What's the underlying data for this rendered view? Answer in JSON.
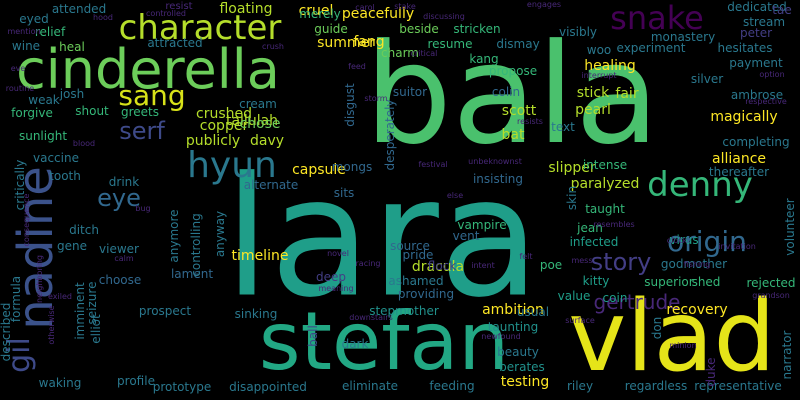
{
  "words": [
    {
      "text": "lara",
      "color": "#1f9e89"
    },
    {
      "text": "bala",
      "color": "#4ac16d"
    },
    {
      "text": "stefan",
      "color": "#22a884"
    },
    {
      "text": "vlad",
      "color": "#e5e419"
    },
    {
      "text": "cinderella",
      "color": "#6ccd5a"
    },
    {
      "text": "nadine",
      "color": "#3b528b"
    },
    {
      "text": "denny",
      "color": "#35b779"
    },
    {
      "text": "character",
      "color": "#b5de2b"
    },
    {
      "text": "sang",
      "color": "#d8e219"
    },
    {
      "text": "snake",
      "color": "#440154"
    },
    {
      "text": "hyun",
      "color": "#2a788e"
    },
    {
      "text": "origin",
      "color": "#31688e"
    },
    {
      "text": "gil",
      "color": "#3e4a89"
    },
    {
      "text": "eye",
      "color": "#31688e"
    },
    {
      "text": "serf",
      "color": "#3e4a89"
    },
    {
      "text": "story",
      "color": "#433e85"
    },
    {
      "text": "gertrude",
      "color": "#482878"
    },
    {
      "text": "tallulah",
      "color": "#b5de2b"
    },
    {
      "text": "dracula",
      "color": "#b5de2b"
    },
    {
      "text": "ambition",
      "color": "#fde725"
    },
    {
      "text": "capsule",
      "color": "#fde725"
    },
    {
      "text": "timeline",
      "color": "#fde725"
    },
    {
      "text": "healing",
      "color": "#fde725"
    },
    {
      "text": "alliance",
      "color": "#fde725"
    },
    {
      "text": "magically",
      "color": "#fde725"
    },
    {
      "text": "testing",
      "color": "#fde725"
    },
    {
      "text": "peacefully",
      "color": "#fde725"
    },
    {
      "text": "fang",
      "color": "#fde725"
    },
    {
      "text": "cruel",
      "color": "#fde725"
    },
    {
      "text": "summer",
      "color": "#fde725"
    },
    {
      "text": "floating",
      "color": "#b5de2b"
    },
    {
      "text": "recovery",
      "color": "#fde725"
    },
    {
      "text": "crushed",
      "color": "#b5de2b"
    },
    {
      "text": "stick",
      "color": "#b5de2b"
    },
    {
      "text": "fair",
      "color": "#b5de2b"
    },
    {
      "text": "scott",
      "color": "#b5de2b"
    },
    {
      "text": "pearl",
      "color": "#b5de2b"
    },
    {
      "text": "bat",
      "color": "#b5de2b"
    },
    {
      "text": "slipper",
      "color": "#b5de2b"
    },
    {
      "text": "paralyzed",
      "color": "#b5de2b"
    },
    {
      "text": "copper",
      "color": "#b5de2b"
    },
    {
      "text": "publicly",
      "color": "#b5de2b"
    },
    {
      "text": "davy",
      "color": "#b5de2b"
    },
    {
      "text": "chose",
      "color": "#6ccd5a"
    },
    {
      "text": "merely",
      "color": "#35b779"
    },
    {
      "text": "guide",
      "color": "#6ccd5a"
    },
    {
      "text": "beside",
      "color": "#6ccd5a"
    },
    {
      "text": "charm",
      "color": "#6ccd5a"
    },
    {
      "text": "heal",
      "color": "#6ccd5a"
    },
    {
      "text": "relief",
      "color": "#35b779"
    },
    {
      "text": "greets",
      "color": "#35b779"
    },
    {
      "text": "sunlight",
      "color": "#35b779"
    },
    {
      "text": "shout",
      "color": "#35b779"
    },
    {
      "text": "forgive",
      "color": "#35b779"
    },
    {
      "text": "stricken",
      "color": "#35b779"
    },
    {
      "text": "resume",
      "color": "#35b779"
    },
    {
      "text": "kang",
      "color": "#35b779"
    },
    {
      "text": "propose",
      "color": "#35b779"
    },
    {
      "text": "intense",
      "color": "#35b779"
    },
    {
      "text": "jean",
      "color": "#35b779"
    },
    {
      "text": "taught",
      "color": "#35b779"
    },
    {
      "text": "vampire",
      "color": "#35b779"
    },
    {
      "text": "pride",
      "color": "#31688e"
    },
    {
      "text": "kitty",
      "color": "#1f9e89"
    },
    {
      "text": "poe",
      "color": "#35b779"
    },
    {
      "text": "superior",
      "color": "#35b779"
    },
    {
      "text": "shed",
      "color": "#35b779"
    },
    {
      "text": "rejected",
      "color": "#35b779"
    },
    {
      "text": "coin",
      "color": "#1f9e89"
    },
    {
      "text": "value",
      "color": "#1f9e89"
    },
    {
      "text": "providing",
      "color": "#31688e"
    },
    {
      "text": "ashamed",
      "color": "#2a788e"
    },
    {
      "text": "deep",
      "color": "#433e85"
    },
    {
      "text": "flock",
      "color": "#433e85"
    },
    {
      "text": "infected",
      "color": "#1f9e89"
    },
    {
      "text": "virus",
      "color": "#1f9e89"
    },
    {
      "text": "source",
      "color": "#31688e"
    },
    {
      "text": "vent",
      "color": "#31688e"
    },
    {
      "text": "stepmother",
      "color": "#21918c"
    },
    {
      "text": "taunting",
      "color": "#21918c"
    },
    {
      "text": "berates",
      "color": "#21918c"
    },
    {
      "text": "beauty",
      "color": "#2a788e"
    },
    {
      "text": "usual",
      "color": "#2a788e"
    },
    {
      "text": "dark",
      "color": "#2a788e"
    },
    {
      "text": "sinking",
      "color": "#2a788e"
    },
    {
      "text": "prospect",
      "color": "#2a788e"
    },
    {
      "text": "prototype",
      "color": "#2a788e"
    },
    {
      "text": "disappointed",
      "color": "#2a788e"
    },
    {
      "text": "eliminate",
      "color": "#2a788e"
    },
    {
      "text": "feeding",
      "color": "#2a788e"
    },
    {
      "text": "riley",
      "color": "#2a788e"
    },
    {
      "text": "regardless",
      "color": "#2a788e"
    },
    {
      "text": "representative",
      "color": "#2a788e"
    },
    {
      "text": "waking",
      "color": "#2a788e"
    },
    {
      "text": "profile",
      "color": "#2a788e"
    },
    {
      "text": "described",
      "color": "#2a788e"
    },
    {
      "text": "cream",
      "color": "#2a788e"
    },
    {
      "text": "vaccine",
      "color": "#2a788e"
    },
    {
      "text": "tooth",
      "color": "#2a788e"
    },
    {
      "text": "drink",
      "color": "#2a788e"
    },
    {
      "text": "gene",
      "color": "#2a788e"
    },
    {
      "text": "ditch",
      "color": "#2a788e"
    },
    {
      "text": "viewer",
      "color": "#2a788e"
    },
    {
      "text": "choose",
      "color": "#31688e"
    },
    {
      "text": "lament",
      "color": "#31688e"
    },
    {
      "text": "alternate",
      "color": "#31688e"
    },
    {
      "text": "sits",
      "color": "#31688e"
    },
    {
      "text": "anymore",
      "color": "#2a788e"
    },
    {
      "text": "anyway",
      "color": "#2a788e"
    },
    {
      "text": "controlling",
      "color": "#2a788e"
    },
    {
      "text": "insisting",
      "color": "#31688e"
    },
    {
      "text": "desperately",
      "color": "#31688e"
    },
    {
      "text": "mongs",
      "color": "#31688e"
    },
    {
      "text": "suitor",
      "color": "#31688e"
    },
    {
      "text": "disgust",
      "color": "#31688e"
    },
    {
      "text": "colin",
      "color": "#31688e"
    },
    {
      "text": "text",
      "color": "#2a788e"
    },
    {
      "text": "visibly",
      "color": "#2a788e"
    },
    {
      "text": "woo",
      "color": "#2a788e"
    },
    {
      "text": "dismay",
      "color": "#2a788e"
    },
    {
      "text": "experiment",
      "color": "#2a788e"
    },
    {
      "text": "monastery",
      "color": "#2a788e"
    },
    {
      "text": "hesitates",
      "color": "#2a788e"
    },
    {
      "text": "payment",
      "color": "#2a788e"
    },
    {
      "text": "ambrose",
      "color": "#2a788e"
    },
    {
      "text": "stream",
      "color": "#2a788e"
    },
    {
      "text": "dedicated",
      "color": "#2a788e"
    },
    {
      "text": "completing",
      "color": "#2a788e"
    },
    {
      "text": "thereafter",
      "color": "#2a788e"
    },
    {
      "text": "volunteer",
      "color": "#2a788e"
    },
    {
      "text": "narrator",
      "color": "#2a788e"
    },
    {
      "text": "godmother",
      "color": "#2a788e"
    },
    {
      "text": "formula",
      "color": "#2a788e"
    },
    {
      "text": "critically",
      "color": "#2a788e"
    },
    {
      "text": "imminent",
      "color": "#2a788e"
    },
    {
      "text": "seizure",
      "color": "#2a788e"
    },
    {
      "text": "elliot",
      "color": "#2a788e"
    },
    {
      "text": "eyed",
      "color": "#2a788e"
    },
    {
      "text": "wine",
      "color": "#2a788e"
    },
    {
      "text": "josh",
      "color": "#2a788e"
    },
    {
      "text": "weak",
      "color": "#2a788e"
    },
    {
      "text": "attended",
      "color": "#2a788e"
    },
    {
      "text": "attracted",
      "color": "#2a788e"
    },
    {
      "text": "silver",
      "color": "#2a788e"
    },
    {
      "text": "don",
      "color": "#2a788e"
    },
    {
      "text": "skin",
      "color": "#2a788e"
    },
    {
      "text": "ball",
      "color": "#3e4a89"
    },
    {
      "text": "tae",
      "color": "#433e85"
    },
    {
      "text": "peter",
      "color": "#433e85"
    },
    {
      "text": "duke",
      "color": "#482878"
    },
    {
      "text": "resist",
      "color": "#482878"
    },
    {
      "text": "controlled",
      "color": "#482878"
    },
    {
      "text": "hood",
      "color": "#482878"
    },
    {
      "text": "stake",
      "color": "#482878"
    },
    {
      "text": "engages",
      "color": "#482878"
    },
    {
      "text": "carol",
      "color": "#482878"
    },
    {
      "text": "discussing",
      "color": "#482878"
    },
    {
      "text": "crush",
      "color": "#482878"
    },
    {
      "text": "critical",
      "color": "#482878"
    },
    {
      "text": "mention",
      "color": "#482878"
    },
    {
      "text": "eve",
      "color": "#482878"
    },
    {
      "text": "routine",
      "color": "#482878"
    },
    {
      "text": "feed",
      "color": "#482878"
    },
    {
      "text": "interrupt",
      "color": "#482878"
    },
    {
      "text": "option",
      "color": "#482878"
    },
    {
      "text": "respective",
      "color": "#482878"
    },
    {
      "text": "storm",
      "color": "#482878"
    },
    {
      "text": "resists",
      "color": "#482878"
    },
    {
      "text": "blood",
      "color": "#482878"
    },
    {
      "text": "consequence",
      "color": "#482878"
    },
    {
      "text": "festival",
      "color": "#482878"
    },
    {
      "text": "unbeknownst",
      "color": "#482878"
    },
    {
      "text": "else",
      "color": "#482878"
    },
    {
      "text": "bug",
      "color": "#482878"
    },
    {
      "text": "clock",
      "color": "#482878"
    },
    {
      "text": "invitation",
      "color": "#482878"
    },
    {
      "text": "resembles",
      "color": "#482878"
    },
    {
      "text": "calm",
      "color": "#482878"
    },
    {
      "text": "neighboring",
      "color": "#482878"
    },
    {
      "text": "novel",
      "color": "#482878"
    },
    {
      "text": "racing",
      "color": "#482878"
    },
    {
      "text": "felt",
      "color": "#482878"
    },
    {
      "text": "intent",
      "color": "#482878"
    },
    {
      "text": "mess",
      "color": "#482878"
    },
    {
      "text": "fishing",
      "color": "#482878"
    },
    {
      "text": "grandson",
      "color": "#482878"
    },
    {
      "text": "meaning",
      "color": "#482878"
    },
    {
      "text": "exiled",
      "color": "#482878"
    },
    {
      "text": "otherwise",
      "color": "#482878"
    },
    {
      "text": "downstairs",
      "color": "#482878"
    },
    {
      "text": "newfound",
      "color": "#482878"
    },
    {
      "text": "surface",
      "color": "#482878"
    },
    {
      "text": "minion",
      "color": "#482878"
    },
    {
      "text": "burnt",
      "color": "#482878"
    },
    {
      "text": "accepted",
      "color": "#482878"
    },
    {
      "text": "introduced",
      "color": "#482878"
    },
    {
      "text": "assumes",
      "color": "#482878"
    },
    {
      "text": "collection",
      "color": "#482878"
    },
    {
      "text": "stroke",
      "color": "#482878"
    },
    {
      "text": "scuffle",
      "color": "#482878"
    }
  ]
}
